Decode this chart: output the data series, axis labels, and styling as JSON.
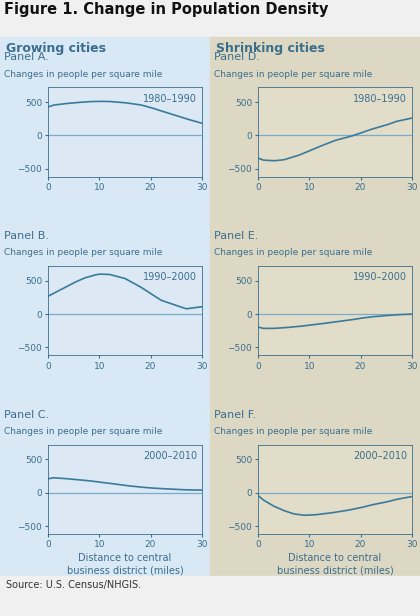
{
  "title": "Figure 1. Change in Population Density",
  "source": "Source: U.S. Census/NHGIS.",
  "left_bg": "#d9e8f5",
  "right_bg": "#ddd8c4",
  "plot_bg_left": "#dce9f5",
  "plot_bg_right": "#e2ddc9",
  "text_color": "#3a6e8c",
  "title_color": "#111111",
  "line_color": "#3a7a9c",
  "zero_line_color": "#7aabca",
  "left_header": "Growing cities",
  "right_header": "Shrinking cities",
  "panels_left": [
    {
      "label": "Panel A.",
      "period": "1980–1990",
      "x": [
        0,
        1,
        3,
        5,
        8,
        10,
        12,
        15,
        18,
        20,
        22,
        25,
        27,
        30
      ],
      "y": [
        430,
        455,
        475,
        490,
        508,
        512,
        510,
        492,
        460,
        420,
        370,
        300,
        250,
        185
      ]
    },
    {
      "label": "Panel B.",
      "period": "1990–2000",
      "x": [
        0,
        1,
        3,
        5,
        7,
        9,
        10,
        12,
        15,
        18,
        20,
        22,
        25,
        27,
        30
      ],
      "y": [
        270,
        310,
        390,
        470,
        540,
        585,
        600,
        595,
        535,
        410,
        310,
        210,
        130,
        80,
        110
      ]
    },
    {
      "label": "Panel C.",
      "period": "2000–2010",
      "x": [
        0,
        1,
        3,
        5,
        8,
        10,
        12,
        15,
        18,
        20,
        22,
        25,
        27,
        30
      ],
      "y": [
        210,
        225,
        215,
        200,
        180,
        160,
        140,
        110,
        85,
        72,
        62,
        52,
        43,
        40
      ]
    }
  ],
  "panels_right": [
    {
      "label": "Panel D.",
      "period": "1980–1990",
      "x": [
        0,
        1,
        3,
        5,
        8,
        10,
        12,
        15,
        18,
        20,
        22,
        25,
        27,
        30
      ],
      "y": [
        -340,
        -370,
        -380,
        -365,
        -295,
        -230,
        -165,
        -75,
        -15,
        35,
        90,
        155,
        210,
        260
      ]
    },
    {
      "label": "Panel E.",
      "period": "1990–2000",
      "x": [
        0,
        1,
        3,
        5,
        8,
        10,
        12,
        15,
        18,
        20,
        22,
        25,
        27,
        30
      ],
      "y": [
        -195,
        -215,
        -215,
        -205,
        -185,
        -165,
        -148,
        -118,
        -88,
        -62,
        -42,
        -22,
        -10,
        0
      ]
    },
    {
      "label": "Panel F.",
      "period": "2000–2010",
      "x": [
        0,
        1,
        3,
        5,
        7,
        9,
        11,
        14,
        17,
        20,
        22,
        25,
        27,
        30
      ],
      "y": [
        -45,
        -110,
        -200,
        -268,
        -318,
        -338,
        -332,
        -305,
        -270,
        -225,
        -185,
        -140,
        -100,
        -58
      ]
    }
  ],
  "ylim": [
    -620,
    720
  ],
  "xlim": [
    0,
    30
  ],
  "yticks": [
    -500,
    0,
    500
  ],
  "xticks": [
    0,
    10,
    20,
    30
  ]
}
